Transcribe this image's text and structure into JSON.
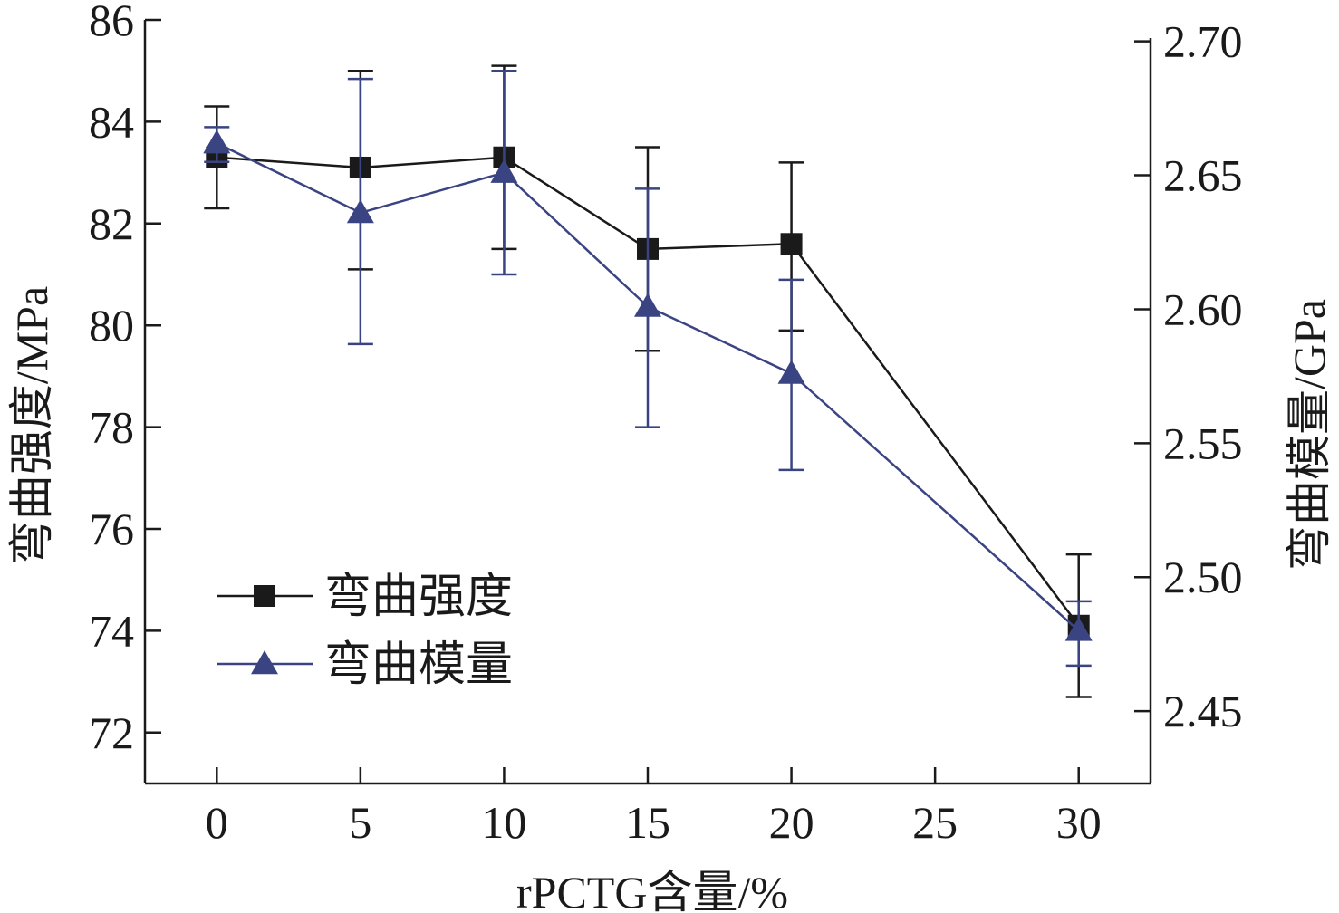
{
  "chart_data": {
    "type": "line",
    "x": [
      0,
      5,
      10,
      15,
      20,
      30
    ],
    "x_ticks": [
      "0",
      "5",
      "10",
      "15",
      "20",
      "25",
      "30"
    ],
    "x_tick_values": [
      0,
      5,
      10,
      15,
      20,
      25,
      30
    ],
    "xlim": [
      -2.5,
      32.5
    ],
    "xlabel": "rPCTG含量/%",
    "ylabel_left": "弯曲强度/MPa",
    "ylabel_right": "弯曲模量/GPa",
    "ylim_left": [
      71,
      86
    ],
    "ylim_right": [
      2.423,
      2.708
    ],
    "left_ticks": [
      72,
      74,
      76,
      78,
      80,
      82,
      84,
      86
    ],
    "right_ticks": [
      "2.45",
      "2.50",
      "2.55",
      "2.60",
      "2.65",
      "2.70"
    ],
    "right_tick_values": [
      2.45,
      2.5,
      2.55,
      2.6,
      2.65,
      2.7
    ],
    "legend_position": "lower-left",
    "grid": false,
    "series": [
      {
        "name": "弯曲强度",
        "axis": "left",
        "color": "#1a1a1a",
        "marker": "square",
        "values": [
          83.3,
          83.1,
          83.3,
          81.5,
          81.6,
          74.1
        ],
        "err_low": [
          82.3,
          81.1,
          81.5,
          79.5,
          79.9,
          72.7
        ],
        "err_high": [
          84.3,
          85.0,
          85.1,
          83.5,
          83.2,
          75.5
        ]
      },
      {
        "name": "弯曲模量",
        "axis": "right",
        "color": "#3b4483",
        "marker": "triangle",
        "values": [
          2.662,
          2.636,
          2.651,
          2.601,
          2.576,
          2.48
        ],
        "err_low": [
          2.655,
          2.587,
          2.613,
          2.556,
          2.54,
          2.467
        ],
        "err_high": [
          2.668,
          2.686,
          2.689,
          2.645,
          2.611,
          2.491
        ]
      }
    ]
  }
}
